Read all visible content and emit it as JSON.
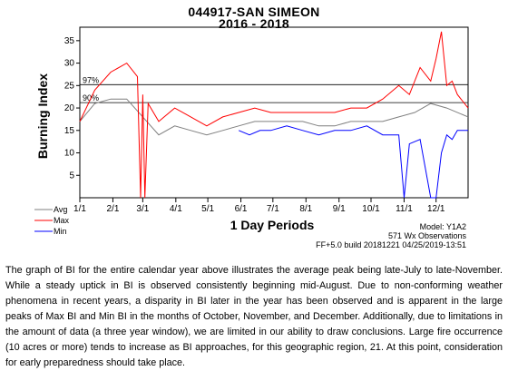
{
  "chart_data": {
    "type": "line",
    "title": "044917-SAN SIMEON",
    "subtitle": "2016 - 2018",
    "ylabel": "Burning Index",
    "xlabel": "1 Day Periods",
    "ylim": [
      0,
      38
    ],
    "yticks": [
      5,
      10,
      15,
      20,
      25,
      30,
      35
    ],
    "xtick_labels": [
      "1/1",
      "2/1",
      "3/1",
      "4/1",
      "5/1",
      "6/1",
      "7/1",
      "8/1",
      "9/1",
      "10/1",
      "11/1",
      "12/1"
    ],
    "percentile_lines": [
      {
        "label": "97%",
        "value": 25.2
      },
      {
        "label": "90%",
        "value": 21.2
      }
    ],
    "legend_position": "bottom-left",
    "series": [
      {
        "name": "Avg",
        "color": "#7f7f7f",
        "x": [
          1,
          15,
          30,
          45,
          60,
          75,
          90,
          105,
          120,
          135,
          150,
          165,
          180,
          195,
          210,
          225,
          240,
          255,
          270,
          285,
          300,
          315,
          330,
          345,
          365
        ],
        "values": [
          17,
          21,
          22,
          22,
          18,
          14,
          16,
          15,
          14,
          15,
          16,
          17,
          17,
          17,
          17,
          16,
          16,
          17,
          17,
          17,
          18,
          19,
          21,
          20,
          18
        ]
      },
      {
        "name": "Max",
        "color": "#ff0000",
        "x": [
          1,
          15,
          30,
          45,
          55,
          58,
          60,
          62,
          65,
          75,
          90,
          105,
          120,
          135,
          150,
          165,
          180,
          195,
          210,
          225,
          240,
          255,
          270,
          285,
          300,
          310,
          320,
          330,
          335,
          340,
          345,
          350,
          355,
          365
        ],
        "values": [
          17,
          24,
          28,
          30,
          27,
          0,
          23,
          0,
          21,
          17,
          20,
          18,
          16,
          18,
          19,
          20,
          19,
          19,
          19,
          19,
          19,
          20,
          20,
          22,
          25,
          23,
          29,
          26,
          31,
          37,
          25,
          26,
          23,
          20
        ]
      },
      {
        "name": "Min",
        "color": "#0000ff",
        "x": [
          150,
          160,
          170,
          180,
          195,
          210,
          225,
          240,
          255,
          270,
          285,
          300,
          305,
          310,
          320,
          330,
          335,
          340,
          345,
          350,
          355,
          365
        ],
        "values": [
          15,
          14,
          15,
          15,
          16,
          15,
          14,
          15,
          15,
          16,
          14,
          14,
          0,
          12,
          13,
          0,
          0,
          10,
          14,
          13,
          15,
          15
        ]
      }
    ],
    "legend": [
      "Avg",
      "Max",
      "Min"
    ],
    "notes": {
      "model": "Model: Y1A2",
      "observations": "571 Wx Observations",
      "build": "FF+5.0 build 20181221 04/25/2019-13:51"
    }
  },
  "paragraph": "The graph of BI for the entire calendar year above illustrates the average peak being late-July to late-November. While a steady uptick in BI is observed consistently beginning mid-August. Due to non-conforming weather phenomena in recent years, a disparity in BI later in the year has been observed and is apparent in the large peaks of Max BI and Min BI in the months of October, November, and December. Additionally, due to limitations in the amount of data (a three year window), we are limited in our ability to draw conclusions. Large fire occurrence (10 acres or more) tends to increase as BI approaches, for this geographic region, 21. At this point, consideration for early preparedness should take place."
}
